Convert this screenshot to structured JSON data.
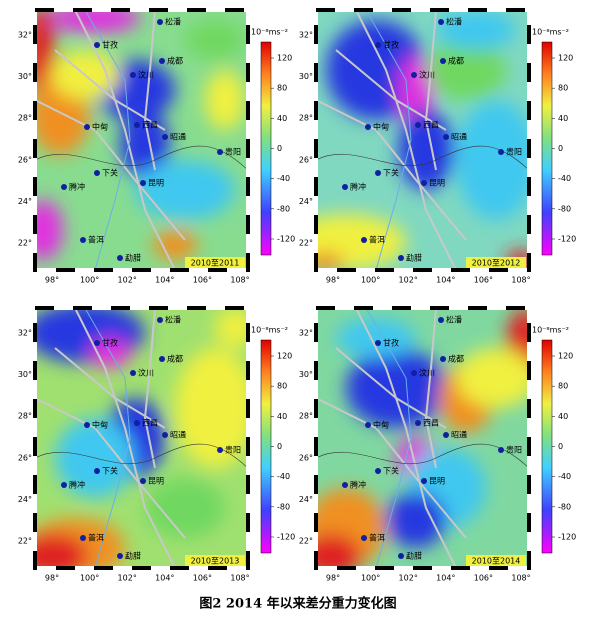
{
  "caption": "图2 2014 年以来差分重力变化图",
  "panels": [
    {
      "label": "2010至2011"
    },
    {
      "label": "2010至2012"
    },
    {
      "label": "2010至2013"
    },
    {
      "label": "2010至2014"
    }
  ],
  "lat_ticks": [
    "32°",
    "30°",
    "28°",
    "26°",
    "24°",
    "22°"
  ],
  "lon_ticks": [
    "98°",
    "100°",
    "102°",
    "104°",
    "106°",
    "108°"
  ],
  "colorbar": {
    "unit": "10⁻⁸ms⁻²",
    "ticks": [
      120,
      80,
      40,
      0,
      -40,
      -80,
      -120
    ]
  },
  "cities": [
    "松潘",
    "甘孜",
    "成都",
    "汶川",
    "中甸",
    "西昌",
    "昭通",
    "贵阳",
    "下关",
    "昆明",
    "腾冲",
    "普洱",
    "勐腊"
  ]
}
